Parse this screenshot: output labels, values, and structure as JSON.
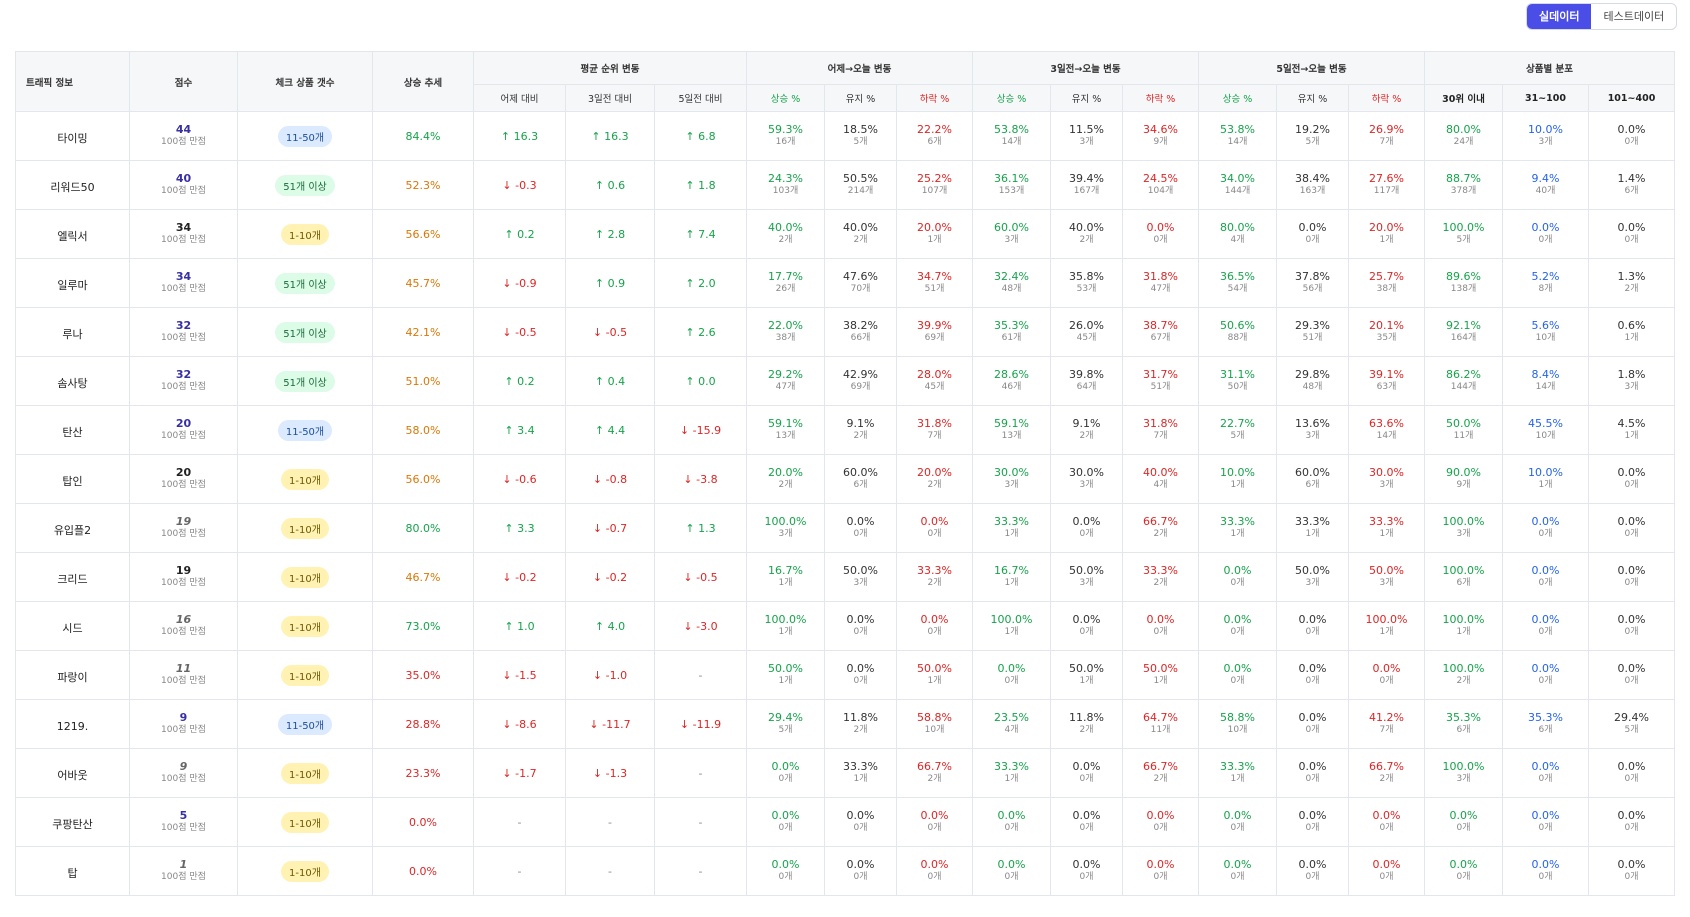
{
  "toggle": {
    "real": "실데이터",
    "test": "테스트데이터"
  },
  "headers": {
    "traffic": "트래픽 정보",
    "score": "점수",
    "count": "체크 상품 갯수",
    "trend": "상승 추세",
    "avg_group": "평균 순위 변동",
    "avg_sub": [
      "어제 대비",
      "3일전 대비",
      "5일전 대비"
    ],
    "g1": "어제→오늘 변동",
    "g3": "3일전→오늘 변동",
    "g5": "5일전→오늘 변동",
    "pct_sub": [
      "상승 %",
      "유지 %",
      "하락 %"
    ],
    "dist": "상품별 분포",
    "dist_sub": [
      "30위 이내",
      "31~100",
      "101~400"
    ]
  },
  "rows": [
    {
      "name": "타이밍",
      "score": "44",
      "score_color": "navy",
      "score_sub": "100점 만점",
      "badge": "11-50개",
      "badge_type": "b2",
      "trend": "84.4%",
      "trend_color": "green",
      "avg": [
        [
          "↑ 16.3",
          "g"
        ],
        [
          "↑ 16.3",
          "g"
        ],
        [
          "↑ 6.8",
          "g"
        ]
      ],
      "g1": [
        [
          "59.3%",
          "16개"
        ],
        [
          "18.5%",
          "5개"
        ],
        [
          "22.2%",
          "6개"
        ]
      ],
      "g3": [
        [
          "53.8%",
          "14개"
        ],
        [
          "11.5%",
          "3개"
        ],
        [
          "34.6%",
          "9개"
        ]
      ],
      "g5": [
        [
          "53.8%",
          "14개"
        ],
        [
          "19.2%",
          "5개"
        ],
        [
          "26.9%",
          "7개"
        ]
      ],
      "dist": [
        [
          "80.0%",
          "24개"
        ],
        [
          "10.0%",
          "3개"
        ],
        [
          "0.0%",
          "0개"
        ]
      ]
    },
    {
      "name": "리워드50",
      "score": "40",
      "score_color": "navy",
      "score_sub": "100점 만점",
      "badge": "51개 이상",
      "badge_type": "b3",
      "trend": "52.3%",
      "trend_color": "amber",
      "avg": [
        [
          "↓ -0.3",
          "r"
        ],
        [
          "↑ 0.6",
          "g"
        ],
        [
          "↑ 1.8",
          "g"
        ]
      ],
      "g1": [
        [
          "24.3%",
          "103개"
        ],
        [
          "50.5%",
          "214개"
        ],
        [
          "25.2%",
          "107개"
        ]
      ],
      "g3": [
        [
          "36.1%",
          "153개"
        ],
        [
          "39.4%",
          "167개"
        ],
        [
          "24.5%",
          "104개"
        ]
      ],
      "g5": [
        [
          "34.0%",
          "144개"
        ],
        [
          "38.4%",
          "163개"
        ],
        [
          "27.6%",
          "117개"
        ]
      ],
      "dist": [
        [
          "88.7%",
          "378개"
        ],
        [
          "9.4%",
          "40개"
        ],
        [
          "1.4%",
          "6개"
        ]
      ]
    },
    {
      "name": "엘릭서",
      "score": "34",
      "score_color": "black",
      "score_sub": "100점 만점",
      "badge": "1-10개",
      "badge_type": "b1",
      "trend": "56.6%",
      "trend_color": "amber",
      "avg": [
        [
          "↑ 0.2",
          "g"
        ],
        [
          "↑ 2.8",
          "g"
        ],
        [
          "↑ 7.4",
          "g"
        ]
      ],
      "g1": [
        [
          "40.0%",
          "2개"
        ],
        [
          "40.0%",
          "2개"
        ],
        [
          "20.0%",
          "1개"
        ]
      ],
      "g3": [
        [
          "60.0%",
          "3개"
        ],
        [
          "40.0%",
          "2개"
        ],
        [
          "0.0%",
          "0개"
        ]
      ],
      "g5": [
        [
          "80.0%",
          "4개"
        ],
        [
          "0.0%",
          "0개"
        ],
        [
          "20.0%",
          "1개"
        ]
      ],
      "dist": [
        [
          "100.0%",
          "5개"
        ],
        [
          "0.0%",
          "0개"
        ],
        [
          "0.0%",
          "0개"
        ]
      ]
    },
    {
      "name": "일루마",
      "score": "34",
      "score_color": "navy",
      "score_sub": "100점 만점",
      "badge": "51개 이상",
      "badge_type": "b3",
      "trend": "45.7%",
      "trend_color": "amber",
      "avg": [
        [
          "↓ -0.9",
          "r"
        ],
        [
          "↑ 0.9",
          "g"
        ],
        [
          "↑ 2.0",
          "g"
        ]
      ],
      "g1": [
        [
          "17.7%",
          "26개"
        ],
        [
          "47.6%",
          "70개"
        ],
        [
          "34.7%",
          "51개"
        ]
      ],
      "g3": [
        [
          "32.4%",
          "48개"
        ],
        [
          "35.8%",
          "53개"
        ],
        [
          "31.8%",
          "47개"
        ]
      ],
      "g5": [
        [
          "36.5%",
          "54개"
        ],
        [
          "37.8%",
          "56개"
        ],
        [
          "25.7%",
          "38개"
        ]
      ],
      "dist": [
        [
          "89.6%",
          "138개"
        ],
        [
          "5.2%",
          "8개"
        ],
        [
          "1.3%",
          "2개"
        ]
      ]
    },
    {
      "name": "루나",
      "score": "32",
      "score_color": "navy",
      "score_sub": "100점 만점",
      "badge": "51개 이상",
      "badge_type": "b3",
      "trend": "42.1%",
      "trend_color": "amber",
      "avg": [
        [
          "↓ -0.5",
          "r"
        ],
        [
          "↓ -0.5",
          "r"
        ],
        [
          "↑ 2.6",
          "g"
        ]
      ],
      "g1": [
        [
          "22.0%",
          "38개"
        ],
        [
          "38.2%",
          "66개"
        ],
        [
          "39.9%",
          "69개"
        ]
      ],
      "g3": [
        [
          "35.3%",
          "61개"
        ],
        [
          "26.0%",
          "45개"
        ],
        [
          "38.7%",
          "67개"
        ]
      ],
      "g5": [
        [
          "50.6%",
          "88개"
        ],
        [
          "29.3%",
          "51개"
        ],
        [
          "20.1%",
          "35개"
        ]
      ],
      "dist": [
        [
          "92.1%",
          "164개"
        ],
        [
          "5.6%",
          "10개"
        ],
        [
          "0.6%",
          "1개"
        ]
      ]
    },
    {
      "name": "솜사탕",
      "score": "32",
      "score_color": "navy",
      "score_sub": "100점 만점",
      "badge": "51개 이상",
      "badge_type": "b3",
      "trend": "51.0%",
      "trend_color": "amber",
      "avg": [
        [
          "↑ 0.2",
          "g"
        ],
        [
          "↑ 0.4",
          "g"
        ],
        [
          "↑ 0.0",
          "g"
        ]
      ],
      "g1": [
        [
          "29.2%",
          "47개"
        ],
        [
          "42.9%",
          "69개"
        ],
        [
          "28.0%",
          "45개"
        ]
      ],
      "g3": [
        [
          "28.6%",
          "46개"
        ],
        [
          "39.8%",
          "64개"
        ],
        [
          "31.7%",
          "51개"
        ]
      ],
      "g5": [
        [
          "31.1%",
          "50개"
        ],
        [
          "29.8%",
          "48개"
        ],
        [
          "39.1%",
          "63개"
        ]
      ],
      "dist": [
        [
          "86.2%",
          "144개"
        ],
        [
          "8.4%",
          "14개"
        ],
        [
          "1.8%",
          "3개"
        ]
      ]
    },
    {
      "name": "탄산",
      "score": "20",
      "score_color": "navy",
      "score_sub": "100점 만점",
      "badge": "11-50개",
      "badge_type": "b2",
      "trend": "58.0%",
      "trend_color": "amber",
      "avg": [
        [
          "↑ 3.4",
          "g"
        ],
        [
          "↑ 4.4",
          "g"
        ],
        [
          "↓ -15.9",
          "r"
        ]
      ],
      "g1": [
        [
          "59.1%",
          "13개"
        ],
        [
          "9.1%",
          "2개"
        ],
        [
          "31.8%",
          "7개"
        ]
      ],
      "g3": [
        [
          "59.1%",
          "13개"
        ],
        [
          "9.1%",
          "2개"
        ],
        [
          "31.8%",
          "7개"
        ]
      ],
      "g5": [
        [
          "22.7%",
          "5개"
        ],
        [
          "13.6%",
          "3개"
        ],
        [
          "63.6%",
          "14개"
        ]
      ],
      "dist": [
        [
          "50.0%",
          "11개"
        ],
        [
          "45.5%",
          "10개"
        ],
        [
          "4.5%",
          "1개"
        ]
      ]
    },
    {
      "name": "탑인",
      "score": "20",
      "score_color": "black",
      "score_sub": "100점 만점",
      "badge": "1-10개",
      "badge_type": "b1",
      "trend": "56.0%",
      "trend_color": "amber",
      "avg": [
        [
          "↓ -0.6",
          "r"
        ],
        [
          "↓ -0.8",
          "r"
        ],
        [
          "↓ -3.8",
          "r"
        ]
      ],
      "g1": [
        [
          "20.0%",
          "2개"
        ],
        [
          "60.0%",
          "6개"
        ],
        [
          "20.0%",
          "2개"
        ]
      ],
      "g3": [
        [
          "30.0%",
          "3개"
        ],
        [
          "30.0%",
          "3개"
        ],
        [
          "40.0%",
          "4개"
        ]
      ],
      "g5": [
        [
          "10.0%",
          "1개"
        ],
        [
          "60.0%",
          "6개"
        ],
        [
          "30.0%",
          "3개"
        ]
      ],
      "dist": [
        [
          "90.0%",
          "9개"
        ],
        [
          "10.0%",
          "1개"
        ],
        [
          "0.0%",
          "0개"
        ]
      ]
    },
    {
      "name": "유입플2",
      "score": "19",
      "score_color": "gray",
      "score_sub": "100점 만점",
      "badge": "1-10개",
      "badge_type": "b1",
      "trend": "80.0%",
      "trend_color": "green",
      "avg": [
        [
          "↑ 3.3",
          "g"
        ],
        [
          "↓ -0.7",
          "r"
        ],
        [
          "↑ 1.3",
          "g"
        ]
      ],
      "g1": [
        [
          "100.0%",
          "3개"
        ],
        [
          "0.0%",
          "0개"
        ],
        [
          "0.0%",
          "0개"
        ]
      ],
      "g3": [
        [
          "33.3%",
          "1개"
        ],
        [
          "0.0%",
          "0개"
        ],
        [
          "66.7%",
          "2개"
        ]
      ],
      "g5": [
        [
          "33.3%",
          "1개"
        ],
        [
          "33.3%",
          "1개"
        ],
        [
          "33.3%",
          "1개"
        ]
      ],
      "dist": [
        [
          "100.0%",
          "3개"
        ],
        [
          "0.0%",
          "0개"
        ],
        [
          "0.0%",
          "0개"
        ]
      ]
    },
    {
      "name": "크리드",
      "score": "19",
      "score_color": "black",
      "score_sub": "100점 만점",
      "badge": "1-10개",
      "badge_type": "b1",
      "trend": "46.7%",
      "trend_color": "amber",
      "avg": [
        [
          "↓ -0.2",
          "r"
        ],
        [
          "↓ -0.2",
          "r"
        ],
        [
          "↓ -0.5",
          "r"
        ]
      ],
      "g1": [
        [
          "16.7%",
          "1개"
        ],
        [
          "50.0%",
          "3개"
        ],
        [
          "33.3%",
          "2개"
        ]
      ],
      "g3": [
        [
          "16.7%",
          "1개"
        ],
        [
          "50.0%",
          "3개"
        ],
        [
          "33.3%",
          "2개"
        ]
      ],
      "g5": [
        [
          "0.0%",
          "0개"
        ],
        [
          "50.0%",
          "3개"
        ],
        [
          "50.0%",
          "3개"
        ]
      ],
      "dist": [
        [
          "100.0%",
          "6개"
        ],
        [
          "0.0%",
          "0개"
        ],
        [
          "0.0%",
          "0개"
        ]
      ]
    },
    {
      "name": "시드",
      "score": "16",
      "score_color": "gray",
      "score_sub": "100점 만점",
      "badge": "1-10개",
      "badge_type": "b1",
      "trend": "73.0%",
      "trend_color": "green",
      "avg": [
        [
          "↑ 1.0",
          "g"
        ],
        [
          "↑ 4.0",
          "g"
        ],
        [
          "↓ -3.0",
          "r"
        ]
      ],
      "g1": [
        [
          "100.0%",
          "1개"
        ],
        [
          "0.0%",
          "0개"
        ],
        [
          "0.0%",
          "0개"
        ]
      ],
      "g3": [
        [
          "100.0%",
          "1개"
        ],
        [
          "0.0%",
          "0개"
        ],
        [
          "0.0%",
          "0개"
        ]
      ],
      "g5": [
        [
          "0.0%",
          "0개"
        ],
        [
          "0.0%",
          "0개"
        ],
        [
          "100.0%",
          "1개"
        ]
      ],
      "dist": [
        [
          "100.0%",
          "1개"
        ],
        [
          "0.0%",
          "0개"
        ],
        [
          "0.0%",
          "0개"
        ]
      ]
    },
    {
      "name": "파랑이",
      "score": "11",
      "score_color": "gray",
      "score_sub": "100점 만점",
      "badge": "1-10개",
      "badge_type": "b1",
      "trend": "35.0%",
      "trend_color": "red",
      "avg": [
        [
          "↓ -1.5",
          "r"
        ],
        [
          "↓ -1.0",
          "r"
        ],
        [
          "-",
          "n"
        ]
      ],
      "g1": [
        [
          "50.0%",
          "1개"
        ],
        [
          "0.0%",
          "0개"
        ],
        [
          "50.0%",
          "1개"
        ]
      ],
      "g3": [
        [
          "0.0%",
          "0개"
        ],
        [
          "50.0%",
          "1개"
        ],
        [
          "50.0%",
          "1개"
        ]
      ],
      "g5": [
        [
          "0.0%",
          "0개"
        ],
        [
          "0.0%",
          "0개"
        ],
        [
          "0.0%",
          "0개"
        ]
      ],
      "dist": [
        [
          "100.0%",
          "2개"
        ],
        [
          "0.0%",
          "0개"
        ],
        [
          "0.0%",
          "0개"
        ]
      ]
    },
    {
      "name": "1219.",
      "score": "9",
      "score_color": "navy",
      "score_sub": "100점 만점",
      "badge": "11-50개",
      "badge_type": "b2",
      "trend": "28.8%",
      "trend_color": "red",
      "avg": [
        [
          "↓ -8.6",
          "r"
        ],
        [
          "↓ -11.7",
          "r"
        ],
        [
          "↓ -11.9",
          "r"
        ]
      ],
      "g1": [
        [
          "29.4%",
          "5개"
        ],
        [
          "11.8%",
          "2개"
        ],
        [
          "58.8%",
          "10개"
        ]
      ],
      "g3": [
        [
          "23.5%",
          "4개"
        ],
        [
          "11.8%",
          "2개"
        ],
        [
          "64.7%",
          "11개"
        ]
      ],
      "g5": [
        [
          "58.8%",
          "10개"
        ],
        [
          "0.0%",
          "0개"
        ],
        [
          "41.2%",
          "7개"
        ]
      ],
      "dist": [
        [
          "35.3%",
          "6개"
        ],
        [
          "35.3%",
          "6개"
        ],
        [
          "29.4%",
          "5개"
        ]
      ]
    },
    {
      "name": "어바웃",
      "score": "9",
      "score_color": "gray",
      "score_sub": "100점 만점",
      "badge": "1-10개",
      "badge_type": "b1",
      "trend": "23.3%",
      "trend_color": "red",
      "avg": [
        [
          "↓ -1.7",
          "r"
        ],
        [
          "↓ -1.3",
          "r"
        ],
        [
          "-",
          "n"
        ]
      ],
      "g1": [
        [
          "0.0%",
          "0개"
        ],
        [
          "33.3%",
          "1개"
        ],
        [
          "66.7%",
          "2개"
        ]
      ],
      "g3": [
        [
          "33.3%",
          "1개"
        ],
        [
          "0.0%",
          "0개"
        ],
        [
          "66.7%",
          "2개"
        ]
      ],
      "g5": [
        [
          "33.3%",
          "1개"
        ],
        [
          "0.0%",
          "0개"
        ],
        [
          "66.7%",
          "2개"
        ]
      ],
      "dist": [
        [
          "100.0%",
          "3개"
        ],
        [
          "0.0%",
          "0개"
        ],
        [
          "0.0%",
          "0개"
        ]
      ]
    },
    {
      "name": "쿠팡탄산",
      "score": "5",
      "score_color": "navy",
      "score_sub": "100점 만점",
      "badge": "1-10개",
      "badge_type": "b1",
      "trend": "0.0%",
      "trend_color": "red",
      "avg": [
        [
          "-",
          "n"
        ],
        [
          "-",
          "n"
        ],
        [
          "-",
          "n"
        ]
      ],
      "g1": [
        [
          "0.0%",
          "0개"
        ],
        [
          "0.0%",
          "0개"
        ],
        [
          "0.0%",
          "0개"
        ]
      ],
      "g3": [
        [
          "0.0%",
          "0개"
        ],
        [
          "0.0%",
          "0개"
        ],
        [
          "0.0%",
          "0개"
        ]
      ],
      "g5": [
        [
          "0.0%",
          "0개"
        ],
        [
          "0.0%",
          "0개"
        ],
        [
          "0.0%",
          "0개"
        ]
      ],
      "dist": [
        [
          "0.0%",
          "0개"
        ],
        [
          "0.0%",
          "0개"
        ],
        [
          "0.0%",
          "0개"
        ]
      ]
    },
    {
      "name": "탑",
      "score": "1",
      "score_color": "gray",
      "score_sub": "100점 만점",
      "badge": "1-10개",
      "badge_type": "b1",
      "trend": "0.0%",
      "trend_color": "red",
      "avg": [
        [
          "-",
          "n"
        ],
        [
          "-",
          "n"
        ],
        [
          "-",
          "n"
        ]
      ],
      "g1": [
        [
          "0.0%",
          "0개"
        ],
        [
          "0.0%",
          "0개"
        ],
        [
          "0.0%",
          "0개"
        ]
      ],
      "g3": [
        [
          "0.0%",
          "0개"
        ],
        [
          "0.0%",
          "0개"
        ],
        [
          "0.0%",
          "0개"
        ]
      ],
      "g5": [
        [
          "0.0%",
          "0개"
        ],
        [
          "0.0%",
          "0개"
        ],
        [
          "0.0%",
          "0개"
        ]
      ],
      "dist": [
        [
          "0.0%",
          "0개"
        ],
        [
          "0.0%",
          "0개"
        ],
        [
          "0.0%",
          "0개"
        ]
      ]
    }
  ]
}
